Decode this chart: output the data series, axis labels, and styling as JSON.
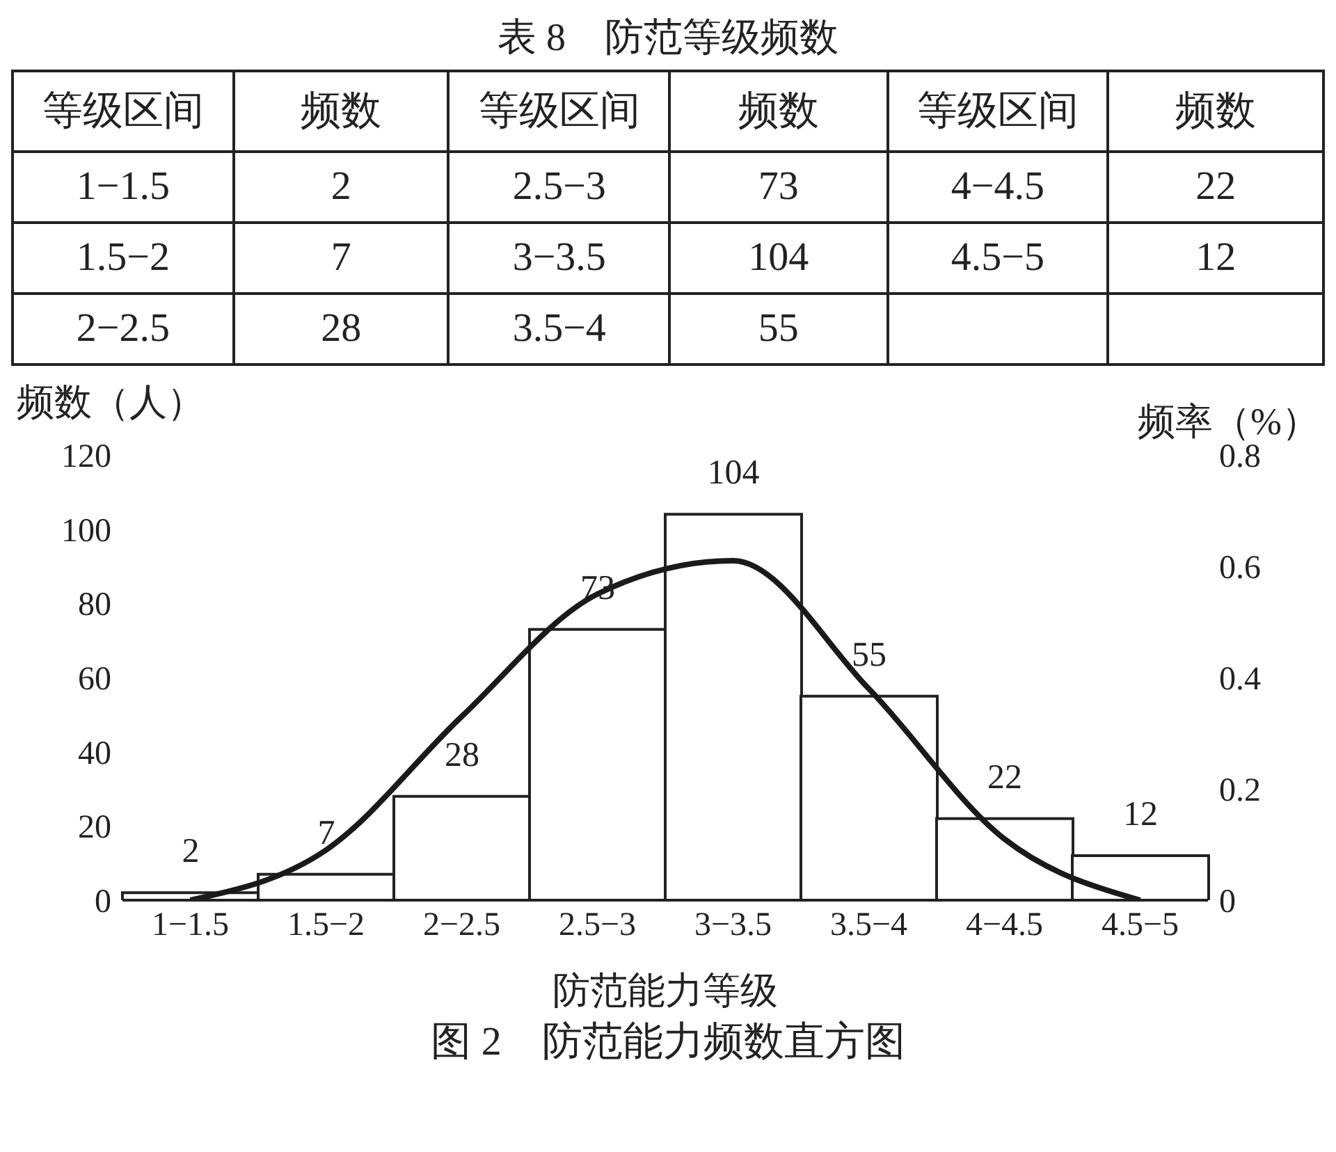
{
  "chart_data": {
    "type": "bar",
    "title": "图 2　防范能力频数直方图",
    "annotations": [
      "表 8　防范等级频数",
      "等级区间",
      "频数",
      "2",
      "7",
      "28",
      "73",
      "104",
      "55",
      "22",
      "12"
    ],
    "xlabel": "防范能力等级",
    "ylabel": "频数（人）",
    "y2label": "频率（%）",
    "categories": [
      "1−1.5",
      "1.5−2",
      "2−2.5",
      "2.5−3",
      "3−3.5",
      "3.5−4",
      "4−4.5",
      "4.5−5"
    ],
    "values": [
      2,
      7,
      28,
      73,
      104,
      55,
      22,
      12
    ],
    "color": "#ffffff",
    "value_labels": [
      "2",
      "7",
      "28",
      "73",
      "104",
      "55",
      "22",
      "12"
    ],
    "ylim": [
      0,
      120
    ],
    "yticks": [
      0,
      20,
      40,
      60,
      80,
      100,
      120
    ],
    "y2lim": [
      0,
      0.8
    ],
    "y2ticks": [
      0,
      0.2,
      0.4,
      0.6,
      0.8
    ],
    "series": [
      {
        "type": "line",
        "axis": "y2",
        "color": "#1a1a1a",
        "values": [
          0,
          0.09,
          0.33,
          0.55,
          0.61,
          0.38,
          0.11,
          0
        ]
      }
    ]
  }
}
